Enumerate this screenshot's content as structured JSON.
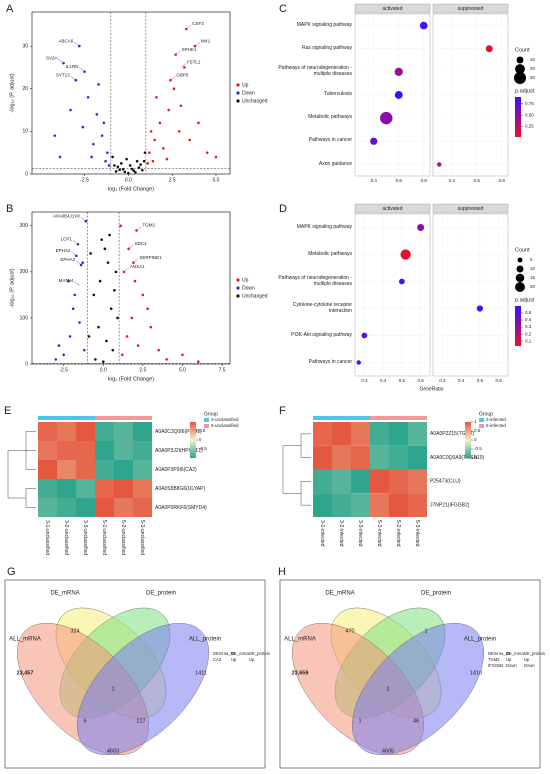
{
  "chart_data": [
    {
      "type": "scatter",
      "panel": "A",
      "xlabel": "log₂ (Fold Change)",
      "ylabel": "-log₁₀ (P. adjust)",
      "xlim": [
        -5.5,
        5.8
      ],
      "ylim": [
        0,
        38
      ],
      "xticks": [
        -2.5,
        {
          "value": 0,
          "label": "0.0"
        },
        2.5,
        {
          "value": 5,
          "label": "5.0"
        }
      ],
      "yticks": [
        0,
        10,
        20,
        30
      ],
      "threshold_x": [
        -1,
        1
      ],
      "threshold_y": 1.3,
      "series": [
        {
          "name": "Up",
          "color": "#e41a1c",
          "x": [
            1.2,
            1.5,
            1.8,
            2.0,
            2.3,
            2.6,
            2.9,
            3.2,
            3.5,
            3.8,
            4.0,
            4.5,
            1.4,
            2.2,
            5.0,
            1.6,
            2.7,
            3.0,
            3.3,
            1.3,
            1.1,
            2.4
          ],
          "values": [
            5,
            8,
            12,
            6,
            15,
            20,
            10,
            25,
            8,
            30,
            12,
            5,
            3,
            3.5,
            4,
            18,
            28,
            16,
            34,
            10,
            2.5,
            22
          ]
        },
        {
          "name": "Down",
          "color": "#2233cc",
          "x": [
            -1.2,
            -1.5,
            -1.8,
            -2.0,
            -2.3,
            -2.6,
            -3.0,
            -3.3,
            -3.7,
            -4.2,
            -1.3,
            -2.8,
            -2.5,
            -1.7,
            -3.9,
            -1.1,
            -1.4,
            -2.1
          ],
          "values": [
            5,
            9,
            14,
            7,
            18,
            11,
            22,
            15,
            26,
            9,
            3,
            30,
            24,
            21,
            4,
            2,
            12,
            4
          ]
        },
        {
          "name": "Unchanged",
          "color": "#111111",
          "x": [
            -0.8,
            -0.5,
            -0.2,
            0,
            0.3,
            0.6,
            0.9,
            -0.9,
            0.5,
            -0.4,
            0.2,
            -0.7,
            0.8,
            0.1,
            -0.1,
            0.4,
            -0.3,
            0.7,
            -0.6,
            0.95
          ],
          "values": [
            2,
            1,
            0.5,
            0.2,
            0.8,
            1.5,
            3,
            4,
            3,
            2.5,
            1.2,
            0.6,
            0.9,
            2,
            3.5,
            0.4,
            1.1,
            2.2,
            1.7,
            5
          ]
        }
      ],
      "labels": [
        {
          "text": "ABCA6",
          "x": -2.8,
          "y": 30
        },
        {
          "text": "SV2A",
          "x": -3.7,
          "y": 26
        },
        {
          "text": "IL1RN",
          "x": -2.5,
          "y": 24
        },
        {
          "text": "SYT13",
          "x": -3.0,
          "y": 22
        },
        {
          "text": "CSF3",
          "x": 3.3,
          "y": 34
        },
        {
          "text": "SPHK1",
          "x": 2.7,
          "y": 28
        },
        {
          "text": "FSTL1",
          "x": 3.0,
          "y": 25
        },
        {
          "text": "GBP5",
          "x": 2.4,
          "y": 22
        },
        {
          "text": "MX1",
          "x": 3.8,
          "y": 30
        }
      ]
    },
    {
      "type": "scatter",
      "panel": "B",
      "xlabel": "log₂ (Fold Change)",
      "ylabel": "-log₁₀ (P. adjust)",
      "xlim": [
        -4.5,
        8
      ],
      "ylim": [
        0,
        330
      ],
      "xticks": [
        -2.5,
        {
          "value": 0,
          "label": "0.0"
        },
        2.5,
        {
          "value": 5,
          "label": "5.0"
        },
        7.5
      ],
      "yticks": [
        0,
        100,
        200,
        300
      ],
      "threshold_x": [
        -1,
        1
      ],
      "threshold_y": 1.3,
      "series": [
        {
          "name": "Up",
          "color": "#e41a1c",
          "x": [
            1.2,
            1.5,
            1.8,
            2.2,
            2.5,
            3,
            3.5,
            4,
            5,
            6,
            1.3,
            1.6,
            2.0,
            2.8,
            1.1,
            2.1,
            1.9
          ],
          "values": [
            20,
            60,
            100,
            40,
            150,
            80,
            30,
            10,
            20,
            5,
            200,
            250,
            180,
            120,
            300,
            290,
            220
          ]
        },
        {
          "name": "Down",
          "color": "#2233cc",
          "x": [
            -1.2,
            -1.5,
            -1.8,
            -2.1,
            -2.5,
            -3,
            -1.3,
            -1.6,
            -1.9,
            -2.8,
            -1.1,
            -2.2,
            -1.4,
            -1.7
          ],
          "values": [
            30,
            90,
            150,
            60,
            20,
            10,
            220,
            260,
            120,
            40,
            310,
            180,
            215,
            235
          ]
        },
        {
          "name": "Unchanged",
          "color": "#111111",
          "x": [
            0.2,
            0.5,
            0.8,
            -0.3,
            -0.6,
            -0.9,
            0.1,
            0.4,
            -0.2,
            0.9,
            0.6,
            -0.5,
            0,
            0.3,
            -0.8,
            0.7,
            -0.1
          ],
          "values": [
            50,
            120,
            200,
            80,
            150,
            60,
            250,
            280,
            180,
            100,
            30,
            10,
            5,
            220,
            240,
            160,
            270
          ]
        }
      ],
      "labels": [
        {
          "text": "A0A0B4J1V0",
          "x": -1.1,
          "y": 310
        },
        {
          "text": "LCP1",
          "x": -1.6,
          "y": 260
        },
        {
          "text": "EPHA2",
          "x": -1.7,
          "y": 235
        },
        {
          "text": "EPHA3",
          "x": -1.4,
          "y": 215
        },
        {
          "text": "MATN4",
          "x": -1.5,
          "y": 170
        },
        {
          "text": "TGM2",
          "x": 2.1,
          "y": 290
        },
        {
          "text": "SDC4",
          "x": 1.6,
          "y": 250
        },
        {
          "text": "ANXA1",
          "x": 1.3,
          "y": 200
        },
        {
          "text": "SERPINE1",
          "x": 1.9,
          "y": 220
        }
      ]
    },
    {
      "type": "dot",
      "panel": "C",
      "facets": [
        "activated",
        "suppressed"
      ],
      "categories": [
        "MAPK signaling pathway",
        "Ras signaling pathway",
        "Pathways of neurodegeneration - multiple diseases",
        "Tuberculosis",
        "Metabolic pathways",
        "Pathways in cancer",
        "Axon guidance"
      ],
      "facet": [
        "activated",
        "suppressed",
        "activated",
        "activated",
        "activated",
        "activated",
        "suppressed"
      ],
      "x": [
        0.8,
        0.7,
        0.6,
        0.6,
        0.5,
        0.4,
        0.3
      ],
      "count": [
        12,
        10,
        14,
        13,
        32,
        11,
        4
      ],
      "p_adjust": [
        0.85,
        0.05,
        0.45,
        0.9,
        0.5,
        0.7,
        0.35
      ],
      "xlim": [
        0.25,
        0.85
      ],
      "xticks": [
        0.4,
        0.6,
        0.8
      ],
      "count_title": "Count",
      "count_ticks": [
        10,
        20,
        30
      ],
      "color_title": "p.adjust",
      "colorlim": [
        0.02,
        0.9
      ],
      "color_ticks": [
        0.75,
        {
          "value": 0.5,
          "label": "0.50"
        },
        0.25
      ],
      "colors": [
        "#e8112d",
        "#3a10ff"
      ]
    },
    {
      "type": "dot",
      "panel": "D",
      "facets": [
        "activated",
        "suppressed"
      ],
      "xlabel": "GeneRatio",
      "categories": [
        "MAPK signaling pathway",
        "Metabolic pathways",
        "Pathways of neurodegeneration - multiple diseases",
        "Cytokine-cytokine receptor interaction",
        "PI3K-Akt signaling pathway",
        "Pathways in cancer"
      ],
      "facet": [
        "activated",
        "activated",
        "activated",
        "suppressed",
        "activated",
        "activated"
      ],
      "x": [
        0.6,
        0.52,
        0.5,
        0.5,
        0.3,
        0.27
      ],
      "count": [
        10,
        22,
        7,
        8,
        7,
        4
      ],
      "p_adjust": [
        0.35,
        0.05,
        0.55,
        0.58,
        0.5,
        0.6
      ],
      "xlim": [
        0.25,
        0.65
      ],
      "xticks": [
        0.3,
        0.4,
        0.5,
        0.6
      ],
      "count_title": "Count",
      "count_ticks": [
        5,
        10,
        15,
        20
      ],
      "color_title": "p.adjust",
      "colorlim": [
        0.03,
        0.6
      ],
      "color_ticks": [
        0.5,
        0.4,
        0.3,
        0.2,
        0.1
      ],
      "colors": [
        "#e8112d",
        "#3a10ff"
      ]
    },
    {
      "type": "heatmap",
      "panel": "E",
      "rows": [
        "A0A0C3Q0I6(PCM1)",
        "A0A0P3J2I(HPCAL1)",
        "A0A0P3P9I6(CA2)",
        "A0A0S5B8G6(ULYAP)",
        "A0A0P0RKF6(SMYD4)"
      ],
      "columns": [
        "3-1-unclassified",
        "3-2-unclassified",
        "3-3-unclassified",
        "5-1-unclassified",
        "5-2-unclassified",
        "5-3-unclassified"
      ],
      "values": [
        [
          0.9,
          0.8,
          1.0,
          -0.9,
          -0.8,
          -1.0
        ],
        [
          0.8,
          0.9,
          0.9,
          -1.0,
          -0.8,
          -0.9
        ],
        [
          1.0,
          0.7,
          0.9,
          -0.9,
          -1.0,
          -0.8
        ],
        [
          -0.9,
          -1.0,
          -0.8,
          0.9,
          1.0,
          0.8
        ],
        [
          -0.8,
          -0.9,
          -1.0,
          1.0,
          0.8,
          0.9
        ]
      ],
      "zlim": [
        -1,
        1
      ],
      "colors": [
        "#2ea58c",
        "#f4f1c8",
        "#e4583f"
      ],
      "zticks": [
        0.5,
        0,
        -0.5
      ],
      "group_title": "Group",
      "groups": [
        "3-unclassified",
        "5-unclassified"
      ],
      "group_colors": [
        "#48c9e6",
        "#f29a9a"
      ],
      "column_groups": [
        "3-unclassified",
        "3-unclassified",
        "3-unclassified",
        "5-unclassified",
        "5-unclassified",
        "5-unclassified"
      ]
    },
    {
      "type": "heatmap",
      "panel": "F",
      "rows": [
        "A0A0P2Z15(TGM2)",
        "A0A0C0Q0A9(TMSB10)",
        "P25473(CLU)",
        "J7NP21(IFGGB2)"
      ],
      "columns": [
        "3-1-infected",
        "3-2-infected",
        "3-3-infected",
        "5-1-infected",
        "5-2-infected",
        "5-3-infected"
      ],
      "values": [
        [
          0.9,
          1.0,
          0.8,
          -0.9,
          -1.0,
          -0.8
        ],
        [
          1.0,
          0.8,
          0.9,
          -0.8,
          -0.9,
          -1.0
        ],
        [
          -0.9,
          -0.8,
          -1.0,
          1.0,
          0.9,
          0.8
        ],
        [
          -1.0,
          -0.9,
          -0.8,
          0.8,
          1.0,
          0.9
        ]
      ],
      "zlim": [
        -1,
        1
      ],
      "colors": [
        "#2ea58c",
        "#f4f1c8",
        "#e4583f"
      ],
      "zticks": [
        1,
        0.5,
        0,
        -0.5,
        -1
      ],
      "group_title": "Group",
      "groups": [
        "3-infected",
        "5-infected"
      ],
      "group_colors": [
        "#48c9e6",
        "#f29a9a"
      ],
      "column_groups": [
        "3-infected",
        "3-infected",
        "3-infected",
        "5-infected",
        "5-infected",
        "5-infected"
      ]
    },
    {
      "type": "venn",
      "panel": "G",
      "sets": [
        "DE_mRNA",
        "DE_protein",
        "ALL_mRNA",
        "ALL_protein"
      ],
      "set_colors": [
        "#f5f07a",
        "#7fe07f",
        "#f4967a",
        "#7a7ef0"
      ],
      "regions": [
        {
          "sets": [
            2
          ],
          "count": {
            "value": 23457,
            "label": "23,457"
          }
        },
        {
          "sets": [
            0,
            2
          ],
          "count": 324
        },
        {
          "sets": [
            3
          ],
          "count": 1411
        },
        {
          "sets": [
            0,
            1,
            2,
            3
          ],
          "count": 1
        },
        {
          "sets": [
            0,
            2,
            3
          ],
          "count": 6
        },
        {
          "sets": [
            1,
            2,
            3
          ],
          "count": 127
        },
        {
          "sets": [
            2,
            3
          ],
          "count": 4603
        }
      ],
      "table": {
        "header": [
          "DEmrna_ID",
          "DE_mrna",
          "DE_protein"
        ],
        "rows": [
          [
            "CA2",
            "Up",
            "Up"
          ]
        ]
      }
    },
    {
      "type": "venn",
      "panel": "H",
      "sets": [
        "DE_mRNA",
        "DE_protein",
        "ALL_mRNA",
        "ALL_protein"
      ],
      "set_colors": [
        "#f5f07a",
        "#7fe07f",
        "#f4967a",
        "#7a7ef0"
      ],
      "regions": [
        {
          "sets": [
            2
          ],
          "count": {
            "value": 23659,
            "label": "23,659"
          }
        },
        {
          "sets": [
            0,
            2
          ],
          "count": 470
        },
        {
          "sets": [
            1,
            3
          ],
          "count": 1
        },
        {
          "sets": [
            3
          ],
          "count": 1410
        },
        {
          "sets": [
            0,
            1,
            2,
            3
          ],
          "count": 2
        },
        {
          "sets": [
            0,
            2,
            3
          ],
          "count": 1
        },
        {
          "sets": [
            1,
            2,
            3
          ],
          "count": 46
        },
        {
          "sets": [
            2,
            3
          ],
          "count": 4605
        }
      ],
      "table": {
        "header": [
          "DEmrna_ID",
          "DE_mrna",
          "DE_protein"
        ],
        "rows": [
          [
            "TGM2",
            "Up",
            "Up"
          ],
          [
            "IFGGB2",
            "Down",
            "Down"
          ]
        ]
      }
    }
  ]
}
